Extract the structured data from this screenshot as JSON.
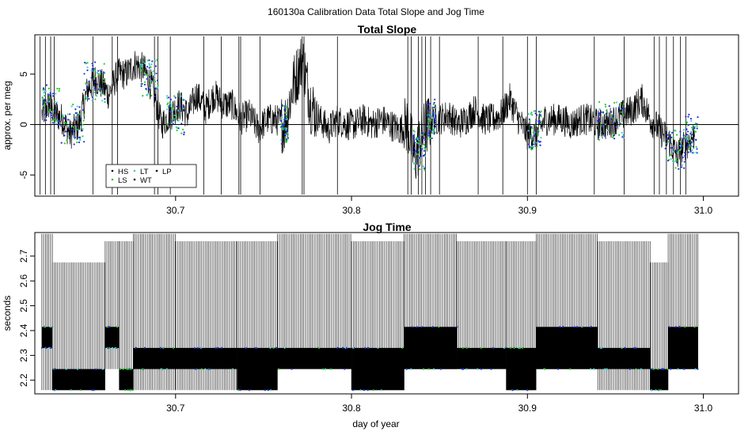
{
  "figure_title": "160130a   Calibration Data Total Slope and Jog Time",
  "x_axis_label": "day of year",
  "legend_entries": [
    {
      "label": "HS",
      "color": "#000000"
    },
    {
      "label": "LS",
      "color": "#22cc22"
    },
    {
      "label": "LT",
      "color": "#44cccc"
    },
    {
      "label": "WT",
      "color": "#000000"
    },
    {
      "label": "LP",
      "color": "#000000"
    }
  ],
  "chart_data": [
    {
      "type": "line",
      "title": "Total Slope",
      "xlabel": "",
      "ylabel": "approx. per meg",
      "xlim": [
        30.62,
        31.02
      ],
      "ylim": [
        -7.1,
        8.9
      ],
      "x_ticks": [
        30.7,
        30.8,
        30.9,
        31.0
      ],
      "x_tick_labels": [
        "30.7",
        "30.8",
        "30.9",
        "31.0"
      ],
      "y_ticks": [
        -5,
        0,
        5
      ],
      "y_tick_labels": [
        "-5",
        "0",
        "5"
      ],
      "reference_line_y": 0,
      "legend_position": "bottom-left",
      "series_colors": {
        "main": "#000000",
        "blue": "#2233dd",
        "green": "#22cc22",
        "cyan": "#44cccc"
      },
      "series": [
        {
          "name": "",
          "x": [
            30.624,
            30.628,
            30.632,
            30.636,
            30.64,
            30.645,
            30.65,
            30.654,
            30.658,
            30.662,
            30.667,
            30.672,
            30.677,
            30.682,
            30.687,
            30.692,
            30.697,
            30.702,
            30.707,
            30.712,
            30.717,
            30.722,
            30.727,
            30.732,
            30.737,
            30.742,
            30.747,
            30.752,
            30.757,
            30.762,
            30.767,
            30.772,
            30.777,
            30.782,
            30.787,
            30.792,
            30.797,
            30.802,
            30.807,
            30.812,
            30.817,
            30.822,
            30.827,
            30.832,
            30.836,
            30.84,
            30.845,
            30.85,
            30.855,
            30.86,
            30.865,
            30.87,
            30.875,
            30.88,
            30.885,
            30.89,
            30.895,
            30.9,
            30.905,
            30.91,
            30.915,
            30.92,
            30.925,
            30.93,
            30.935,
            30.94,
            30.945,
            30.95,
            30.955,
            30.96,
            30.965,
            30.97,
            30.975,
            30.98,
            30.985,
            30.99,
            30.995
          ],
          "y": [
            1.0,
            2.0,
            1.0,
            0.5,
            -1.0,
            0.0,
            3.5,
            4.5,
            4.0,
            3.0,
            5.0,
            5.0,
            6.0,
            5.5,
            3.5,
            0.0,
            1.0,
            2.0,
            1.0,
            3.0,
            1.5,
            3.0,
            2.0,
            2.0,
            0.5,
            1.0,
            -0.5,
            0.5,
            0.5,
            0.0,
            4.0,
            6.5,
            2.0,
            0.5,
            -0.5,
            0.5,
            0.0,
            0.0,
            0.5,
            0.0,
            0.5,
            0.0,
            -0.5,
            0.0,
            -3.5,
            -1.0,
            0.5,
            0.5,
            1.0,
            0.0,
            0.5,
            1.5,
            0.5,
            0.5,
            1.0,
            2.5,
            0.5,
            -1.0,
            -1.0,
            0.5,
            0.5,
            0.5,
            0.0,
            0.5,
            0.5,
            0.0,
            0.0,
            0.5,
            1.0,
            1.5,
            2.5,
            0.5,
            -0.5,
            -1.5,
            -3.0,
            -2.0,
            -1.0
          ]
        }
      ]
    },
    {
      "type": "line",
      "title": "Jog Time",
      "xlabel": "day of year",
      "ylabel": "seconds",
      "xlim": [
        30.62,
        31.02
      ],
      "ylim": [
        2.145,
        2.795
      ],
      "x_ticks": [
        30.7,
        30.8,
        30.9,
        31.0
      ],
      "x_tick_labels": [
        "30.7",
        "30.8",
        "30.9",
        "31.0"
      ],
      "y_ticks": [
        2.2,
        2.3,
        2.4,
        2.5,
        2.6,
        2.7
      ],
      "y_tick_labels": [
        "2.2",
        "2.3",
        "2.4",
        "2.5",
        "2.6",
        "2.7"
      ],
      "jog_levels": [
        2.16,
        2.245,
        2.33,
        2.415,
        2.675,
        2.76
      ],
      "segments": [
        {
          "x": [
            30.624,
            30.63
          ],
          "level": [
            2.33,
            2.415
          ],
          "range": [
            2.16,
            2.79
          ]
        },
        {
          "x": [
            30.63,
            30.66
          ],
          "level": [
            2.16,
            2.245
          ],
          "range": [
            2.16,
            2.675
          ]
        },
        {
          "x": [
            30.66,
            30.668
          ],
          "level": [
            2.33,
            2.415
          ],
          "range": [
            2.245,
            2.76
          ]
        },
        {
          "x": [
            30.668,
            30.676
          ],
          "level": [
            2.16,
            2.245
          ],
          "range": [
            2.16,
            2.76
          ]
        },
        {
          "x": [
            30.676,
            30.7
          ],
          "level": [
            2.245,
            2.33
          ],
          "range": [
            2.16,
            2.79
          ]
        },
        {
          "x": [
            30.7,
            30.735
          ],
          "level": [
            2.245,
            2.33
          ],
          "range": [
            2.16,
            2.76
          ]
        },
        {
          "x": [
            30.735,
            30.758
          ],
          "level": [
            2.16,
            2.33
          ],
          "range": [
            2.16,
            2.76
          ]
        },
        {
          "x": [
            30.758,
            30.8
          ],
          "level": [
            2.245,
            2.33
          ],
          "range": [
            2.245,
            2.79
          ]
        },
        {
          "x": [
            30.8,
            30.83
          ],
          "level": [
            2.16,
            2.33
          ],
          "range": [
            2.16,
            2.76
          ]
        },
        {
          "x": [
            30.83,
            30.86
          ],
          "level": [
            2.245,
            2.415
          ],
          "range": [
            2.245,
            2.79
          ]
        },
        {
          "x": [
            30.86,
            30.888
          ],
          "level": [
            2.245,
            2.33
          ],
          "range": [
            2.245,
            2.76
          ]
        },
        {
          "x": [
            30.888,
            30.905
          ],
          "level": [
            2.16,
            2.33
          ],
          "range": [
            2.16,
            2.76
          ]
        },
        {
          "x": [
            30.905,
            30.94
          ],
          "level": [
            2.245,
            2.415
          ],
          "range": [
            2.245,
            2.79
          ]
        },
        {
          "x": [
            30.94,
            30.97
          ],
          "level": [
            2.245,
            2.33
          ],
          "range": [
            2.16,
            2.76
          ]
        },
        {
          "x": [
            30.97,
            30.98
          ],
          "level": [
            2.16,
            2.245
          ],
          "range": [
            2.16,
            2.675
          ]
        },
        {
          "x": [
            30.98,
            30.997
          ],
          "level": [
            2.245,
            2.415
          ],
          "range": [
            2.245,
            2.79
          ]
        }
      ]
    }
  ]
}
